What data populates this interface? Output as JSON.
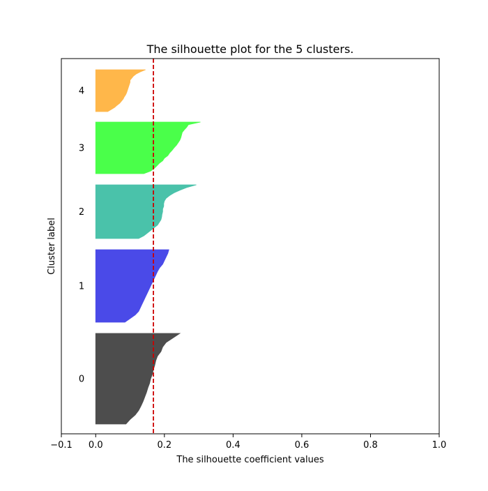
{
  "chart_data": {
    "type": "area",
    "title": "The silhouette plot for the 5 clusters.",
    "xlabel": "The silhouette coefficient values",
    "ylabel": "Cluster label",
    "xlim": [
      -0.1,
      1.0
    ],
    "xticks": [
      -0.1,
      0.0,
      0.2,
      0.4,
      0.6,
      0.8,
      1.0
    ],
    "xtick_labels": [
      "−0.1",
      "0.0",
      "0.2",
      "0.4",
      "0.6",
      "0.8",
      "1.0"
    ],
    "grid": false,
    "average_silhouette_score": 0.168,
    "average_line_color": "#cc0000",
    "clusters": [
      {
        "label": "0",
        "color": "#4d4d4d",
        "profile": [
          [
            0.0,
            0.245
          ],
          [
            0.05,
            0.225
          ],
          [
            0.1,
            0.205
          ],
          [
            0.15,
            0.195
          ],
          [
            0.2,
            0.19
          ],
          [
            0.25,
            0.18
          ],
          [
            0.3,
            0.175
          ],
          [
            0.35,
            0.172
          ],
          [
            0.4,
            0.168
          ],
          [
            0.45,
            0.165
          ],
          [
            0.5,
            0.16
          ],
          [
            0.55,
            0.157
          ],
          [
            0.6,
            0.152
          ],
          [
            0.65,
            0.148
          ],
          [
            0.7,
            0.143
          ],
          [
            0.75,
            0.138
          ],
          [
            0.8,
            0.132
          ],
          [
            0.85,
            0.125
          ],
          [
            0.9,
            0.115
          ],
          [
            0.95,
            0.1
          ],
          [
            1.0,
            0.088
          ]
        ]
      },
      {
        "label": "1",
        "color": "#4a4ae8",
        "profile": [
          [
            0.0,
            0.213
          ],
          [
            0.05,
            0.21
          ],
          [
            0.1,
            0.205
          ],
          [
            0.15,
            0.2
          ],
          [
            0.2,
            0.195
          ],
          [
            0.25,
            0.186
          ],
          [
            0.3,
            0.18
          ],
          [
            0.35,
            0.175
          ],
          [
            0.4,
            0.17
          ],
          [
            0.45,
            0.165
          ],
          [
            0.5,
            0.16
          ],
          [
            0.55,
            0.155
          ],
          [
            0.6,
            0.15
          ],
          [
            0.65,
            0.145
          ],
          [
            0.7,
            0.14
          ],
          [
            0.75,
            0.135
          ],
          [
            0.8,
            0.13
          ],
          [
            0.85,
            0.125
          ],
          [
            0.9,
            0.115
          ],
          [
            0.95,
            0.1
          ],
          [
            1.0,
            0.085
          ]
        ]
      },
      {
        "label": "2",
        "color": "#4ac2aa",
        "profile": [
          [
            0.0,
            0.293
          ],
          [
            0.05,
            0.265
          ],
          [
            0.1,
            0.245
          ],
          [
            0.15,
            0.228
          ],
          [
            0.2,
            0.215
          ],
          [
            0.25,
            0.205
          ],
          [
            0.3,
            0.2
          ],
          [
            0.35,
            0.198
          ],
          [
            0.4,
            0.198
          ],
          [
            0.45,
            0.195
          ],
          [
            0.5,
            0.195
          ],
          [
            0.55,
            0.193
          ],
          [
            0.6,
            0.192
          ],
          [
            0.65,
            0.19
          ],
          [
            0.7,
            0.185
          ],
          [
            0.75,
            0.18
          ],
          [
            0.8,
            0.17
          ],
          [
            0.85,
            0.16
          ],
          [
            0.9,
            0.15
          ],
          [
            0.95,
            0.14
          ],
          [
            1.0,
            0.125
          ]
        ]
      },
      {
        "label": "3",
        "color": "#4aff4a",
        "profile": [
          [
            0.0,
            0.305
          ],
          [
            0.05,
            0.27
          ],
          [
            0.1,
            0.265
          ],
          [
            0.15,
            0.258
          ],
          [
            0.2,
            0.252
          ],
          [
            0.25,
            0.25
          ],
          [
            0.3,
            0.248
          ],
          [
            0.35,
            0.245
          ],
          [
            0.4,
            0.24
          ],
          [
            0.45,
            0.235
          ],
          [
            0.5,
            0.228
          ],
          [
            0.55,
            0.222
          ],
          [
            0.6,
            0.215
          ],
          [
            0.65,
            0.21
          ],
          [
            0.7,
            0.2
          ],
          [
            0.75,
            0.195
          ],
          [
            0.8,
            0.185
          ],
          [
            0.85,
            0.178
          ],
          [
            0.9,
            0.17
          ],
          [
            0.95,
            0.16
          ],
          [
            1.0,
            0.14
          ]
        ]
      },
      {
        "label": "4",
        "color": "#ffb74a",
        "profile": [
          [
            0.0,
            0.145
          ],
          [
            0.05,
            0.13
          ],
          [
            0.1,
            0.118
          ],
          [
            0.15,
            0.11
          ],
          [
            0.2,
            0.105
          ],
          [
            0.25,
            0.1
          ],
          [
            0.3,
            0.1
          ],
          [
            0.35,
            0.098
          ],
          [
            0.4,
            0.096
          ],
          [
            0.45,
            0.094
          ],
          [
            0.5,
            0.092
          ],
          [
            0.55,
            0.09
          ],
          [
            0.6,
            0.087
          ],
          [
            0.65,
            0.083
          ],
          [
            0.7,
            0.08
          ],
          [
            0.75,
            0.075
          ],
          [
            0.8,
            0.07
          ],
          [
            0.85,
            0.062
          ],
          [
            0.9,
            0.055
          ],
          [
            0.95,
            0.045
          ],
          [
            1.0,
            0.035
          ]
        ]
      }
    ]
  }
}
